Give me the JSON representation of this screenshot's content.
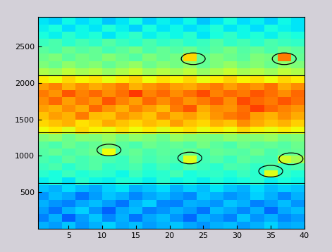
{
  "chart_data": {
    "type": "heatmap",
    "xlim": [
      0.5,
      40
    ],
    "xticks": [
      5,
      10,
      15,
      20,
      25,
      30,
      35,
      40
    ],
    "ylim": [
      0,
      2900
    ],
    "yticks": [
      500,
      1000,
      1500,
      2000,
      2500
    ],
    "x_edges": [
      0,
      2,
      4,
      6,
      8,
      10,
      12,
      14,
      16,
      18,
      20,
      22,
      24,
      26,
      28,
      30,
      32,
      34,
      36,
      38,
      40
    ],
    "y_edges": [
      0,
      100,
      200,
      300,
      400,
      500,
      600,
      700,
      800,
      900,
      1000,
      1100,
      1200,
      1300,
      1400,
      1500,
      1600,
      1700,
      1800,
      1900,
      2000,
      2100,
      2200,
      2300,
      2400,
      2500,
      2600,
      2700,
      2800,
      2900
    ],
    "color_range": [
      0,
      1
    ],
    "cells": [
      [
        0.3,
        0.28,
        0.32,
        0.27,
        0.3,
        0.33,
        0.29,
        0.31,
        0.28,
        0.3,
        0.32,
        0.29,
        0.27,
        0.3,
        0.31,
        0.28,
        0.3,
        0.33,
        0.29,
        0.3
      ],
      [
        0.25,
        0.3,
        0.22,
        0.28,
        0.32,
        0.26,
        0.3,
        0.24,
        0.29,
        0.31,
        0.27,
        0.23,
        0.3,
        0.28,
        0.25,
        0.32,
        0.27,
        0.3,
        0.26,
        0.28
      ],
      [
        0.28,
        0.24,
        0.3,
        0.33,
        0.27,
        0.22,
        0.29,
        0.31,
        0.25,
        0.27,
        0.3,
        0.28,
        0.24,
        0.31,
        0.29,
        0.26,
        0.3,
        0.23,
        0.29,
        0.31
      ],
      [
        0.3,
        0.27,
        0.25,
        0.29,
        0.31,
        0.28,
        0.24,
        0.3,
        0.33,
        0.26,
        0.25,
        0.3,
        0.29,
        0.27,
        0.32,
        0.3,
        0.25,
        0.28,
        0.31,
        0.27
      ],
      [
        0.27,
        0.31,
        0.29,
        0.24,
        0.28,
        0.32,
        0.3,
        0.26,
        0.29,
        0.31,
        0.28,
        0.26,
        0.32,
        0.3,
        0.27,
        0.29,
        0.33,
        0.3,
        0.26,
        0.3
      ],
      [
        0.32,
        0.3,
        0.34,
        0.31,
        0.29,
        0.33,
        0.35,
        0.3,
        0.32,
        0.34,
        0.3,
        0.33,
        0.31,
        0.35,
        0.32,
        0.3,
        0.34,
        0.31,
        0.33,
        0.32
      ],
      [
        0.36,
        0.38,
        0.35,
        0.4,
        0.37,
        0.36,
        0.39,
        0.38,
        0.36,
        0.4,
        0.37,
        0.38,
        0.36,
        0.39,
        0.37,
        0.38,
        0.4,
        0.36,
        0.38,
        0.37
      ],
      [
        0.4,
        0.38,
        0.42,
        0.39,
        0.41,
        0.4,
        0.37,
        0.42,
        0.39,
        0.4,
        0.43,
        0.38,
        0.4,
        0.41,
        0.39,
        0.42,
        0.4,
        0.62,
        0.41,
        0.39
      ],
      [
        0.42,
        0.44,
        0.4,
        0.43,
        0.45,
        0.41,
        0.42,
        0.44,
        0.4,
        0.43,
        0.41,
        0.45,
        0.42,
        0.4,
        0.44,
        0.43,
        0.41,
        0.45,
        0.42,
        0.44
      ],
      [
        0.44,
        0.42,
        0.46,
        0.43,
        0.45,
        0.44,
        0.42,
        0.46,
        0.43,
        0.45,
        0.44,
        0.62,
        0.43,
        0.45,
        0.42,
        0.46,
        0.44,
        0.43,
        0.6,
        0.55
      ],
      [
        0.45,
        0.47,
        0.44,
        0.46,
        0.48,
        0.64,
        0.45,
        0.47,
        0.44,
        0.46,
        0.45,
        0.48,
        0.44,
        0.47,
        0.46,
        0.45,
        0.48,
        0.44,
        0.46,
        0.47
      ],
      [
        0.46,
        0.44,
        0.48,
        0.45,
        0.47,
        0.5,
        0.46,
        0.44,
        0.48,
        0.46,
        0.47,
        0.45,
        0.49,
        0.46,
        0.44,
        0.48,
        0.46,
        0.47,
        0.45,
        0.48
      ],
      [
        0.5,
        0.52,
        0.48,
        0.51,
        0.5,
        0.53,
        0.49,
        0.52,
        0.5,
        0.48,
        0.53,
        0.51,
        0.5,
        0.49,
        0.52,
        0.5,
        0.51,
        0.53,
        0.49,
        0.5
      ],
      [
        0.64,
        0.66,
        0.62,
        0.68,
        0.65,
        0.63,
        0.67,
        0.64,
        0.66,
        0.62,
        0.65,
        0.67,
        0.63,
        0.66,
        0.64,
        0.68,
        0.65,
        0.63,
        0.66,
        0.64
      ],
      [
        0.68,
        0.7,
        0.72,
        0.67,
        0.69,
        0.73,
        0.7,
        0.68,
        0.71,
        0.69,
        0.74,
        0.7,
        0.68,
        0.72,
        0.7,
        0.76,
        0.73,
        0.7,
        0.72,
        0.69
      ],
      [
        0.7,
        0.74,
        0.72,
        0.78,
        0.71,
        0.7,
        0.75,
        0.73,
        0.7,
        0.76,
        0.72,
        0.74,
        0.71,
        0.75,
        0.78,
        0.8,
        0.74,
        0.72,
        0.76,
        0.73
      ],
      [
        0.74,
        0.72,
        0.76,
        0.73,
        0.8,
        0.75,
        0.72,
        0.77,
        0.74,
        0.71,
        0.78,
        0.82,
        0.73,
        0.76,
        0.75,
        0.79,
        0.84,
        0.8,
        0.77,
        0.75
      ],
      [
        0.76,
        0.8,
        0.74,
        0.78,
        0.75,
        0.82,
        0.77,
        0.74,
        0.8,
        0.76,
        0.79,
        0.75,
        0.78,
        0.81,
        0.76,
        0.83,
        0.8,
        0.78,
        0.82,
        0.79
      ],
      [
        0.78,
        0.75,
        0.82,
        0.77,
        0.8,
        0.76,
        0.79,
        0.85,
        0.77,
        0.8,
        0.76,
        0.79,
        0.83,
        0.77,
        0.8,
        0.78,
        0.82,
        0.79,
        0.76,
        0.8
      ],
      [
        0.74,
        0.77,
        0.72,
        0.76,
        0.73,
        0.75,
        0.78,
        0.72,
        0.75,
        0.77,
        0.74,
        0.73,
        0.76,
        0.78,
        0.74,
        0.77,
        0.75,
        0.79,
        0.73,
        0.76
      ],
      [
        0.66,
        0.64,
        0.68,
        0.65,
        0.67,
        0.63,
        0.66,
        0.69,
        0.64,
        0.67,
        0.65,
        0.68,
        0.63,
        0.66,
        0.69,
        0.65,
        0.67,
        0.64,
        0.68,
        0.66
      ],
      [
        0.56,
        0.54,
        0.58,
        0.55,
        0.57,
        0.53,
        0.56,
        0.59,
        0.54,
        0.57,
        0.55,
        0.58,
        0.53,
        0.56,
        0.59,
        0.55,
        0.57,
        0.54,
        0.58,
        0.56
      ],
      [
        0.5,
        0.48,
        0.52,
        0.49,
        0.51,
        0.47,
        0.5,
        0.53,
        0.48,
        0.51,
        0.49,
        0.52,
        0.47,
        0.5,
        0.53,
        0.49,
        0.51,
        0.48,
        0.52,
        0.5
      ],
      [
        0.48,
        0.5,
        0.46,
        0.49,
        0.47,
        0.51,
        0.48,
        0.45,
        0.5,
        0.47,
        0.49,
        0.68,
        0.47,
        0.5,
        0.48,
        0.46,
        0.5,
        0.49,
        0.78,
        0.47
      ],
      [
        0.46,
        0.44,
        0.48,
        0.45,
        0.47,
        0.43,
        0.46,
        0.49,
        0.44,
        0.47,
        0.45,
        0.48,
        0.43,
        0.46,
        0.49,
        0.45,
        0.47,
        0.44,
        0.48,
        0.46
      ],
      [
        0.42,
        0.44,
        0.4,
        0.43,
        0.41,
        0.45,
        0.42,
        0.4,
        0.44,
        0.41,
        0.43,
        0.4,
        0.42,
        0.45,
        0.41,
        0.43,
        0.4,
        0.44,
        0.42,
        0.41
      ],
      [
        0.38,
        0.36,
        0.4,
        0.37,
        0.39,
        0.35,
        0.38,
        0.41,
        0.36,
        0.39,
        0.37,
        0.4,
        0.35,
        0.38,
        0.41,
        0.37,
        0.39,
        0.36,
        0.4,
        0.38
      ],
      [
        0.36,
        0.38,
        0.34,
        0.37,
        0.35,
        0.39,
        0.36,
        0.33,
        0.38,
        0.35,
        0.37,
        0.34,
        0.36,
        0.39,
        0.35,
        0.37,
        0.34,
        0.38,
        0.36,
        0.35
      ],
      [
        0.35,
        0.33,
        0.37,
        0.34,
        0.36,
        0.32,
        0.35,
        0.38,
        0.33,
        0.36,
        0.34,
        0.37,
        0.32,
        0.35,
        0.38,
        0.34,
        0.36,
        0.33,
        0.37,
        0.35
      ]
    ],
    "hlines": [
      2100,
      1320,
      630
    ],
    "ellipses": [
      {
        "x": 23.5,
        "y": 2330
      },
      {
        "x": 37,
        "y": 2330
      },
      {
        "x": 11,
        "y": 1080
      },
      {
        "x": 23,
        "y": 970
      },
      {
        "x": 38,
        "y": 960
      },
      {
        "x": 35,
        "y": 790
      }
    ]
  }
}
